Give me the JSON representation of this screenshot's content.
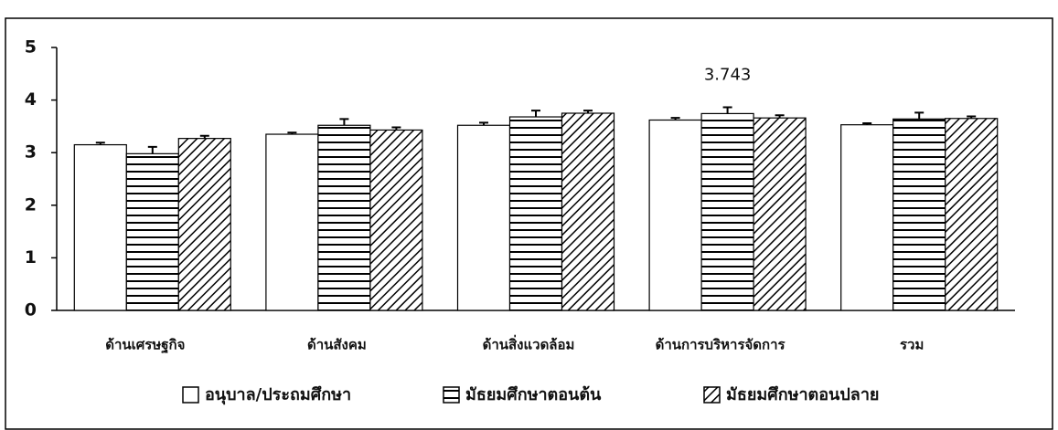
{
  "chart_data": {
    "type": "bar",
    "categories": [
      "ด้านเศรษฐกิจ",
      "ด้านสังคม",
      "ด้านสิ่งแวดล้อม",
      "ด้านการบริหารจัดการ",
      "รวม"
    ],
    "series": [
      {
        "name": "อนุบาล/ประถมศึกษา",
        "color": "#ffffff",
        "pattern": "none",
        "values": [
          3.15,
          3.35,
          3.52,
          3.62,
          3.53
        ],
        "errors": [
          0.04,
          0.03,
          0.05,
          0.04,
          0.03
        ]
      },
      {
        "name": "มัธยมศึกษาตอนต้น",
        "color": "#ffffff",
        "pattern": "horizontal",
        "values": [
          2.98,
          3.52,
          3.68,
          3.743,
          3.64
        ],
        "errors": [
          0.13,
          0.12,
          0.12,
          0.12,
          0.12
        ],
        "value_labels": [
          null,
          null,
          null,
          "3.743",
          null
        ]
      },
      {
        "name": "มัธยมศึกษาตอนปลาย",
        "color": "#ffffff",
        "pattern": "diagonal",
        "values": [
          3.27,
          3.43,
          3.75,
          3.66,
          3.65
        ],
        "errors": [
          0.05,
          0.05,
          0.05,
          0.05,
          0.04
        ]
      }
    ],
    "ylim": [
      0,
      5
    ],
    "yticks": [
      0,
      1,
      2,
      3,
      4,
      5
    ],
    "grid": false,
    "legend": "bottom"
  }
}
